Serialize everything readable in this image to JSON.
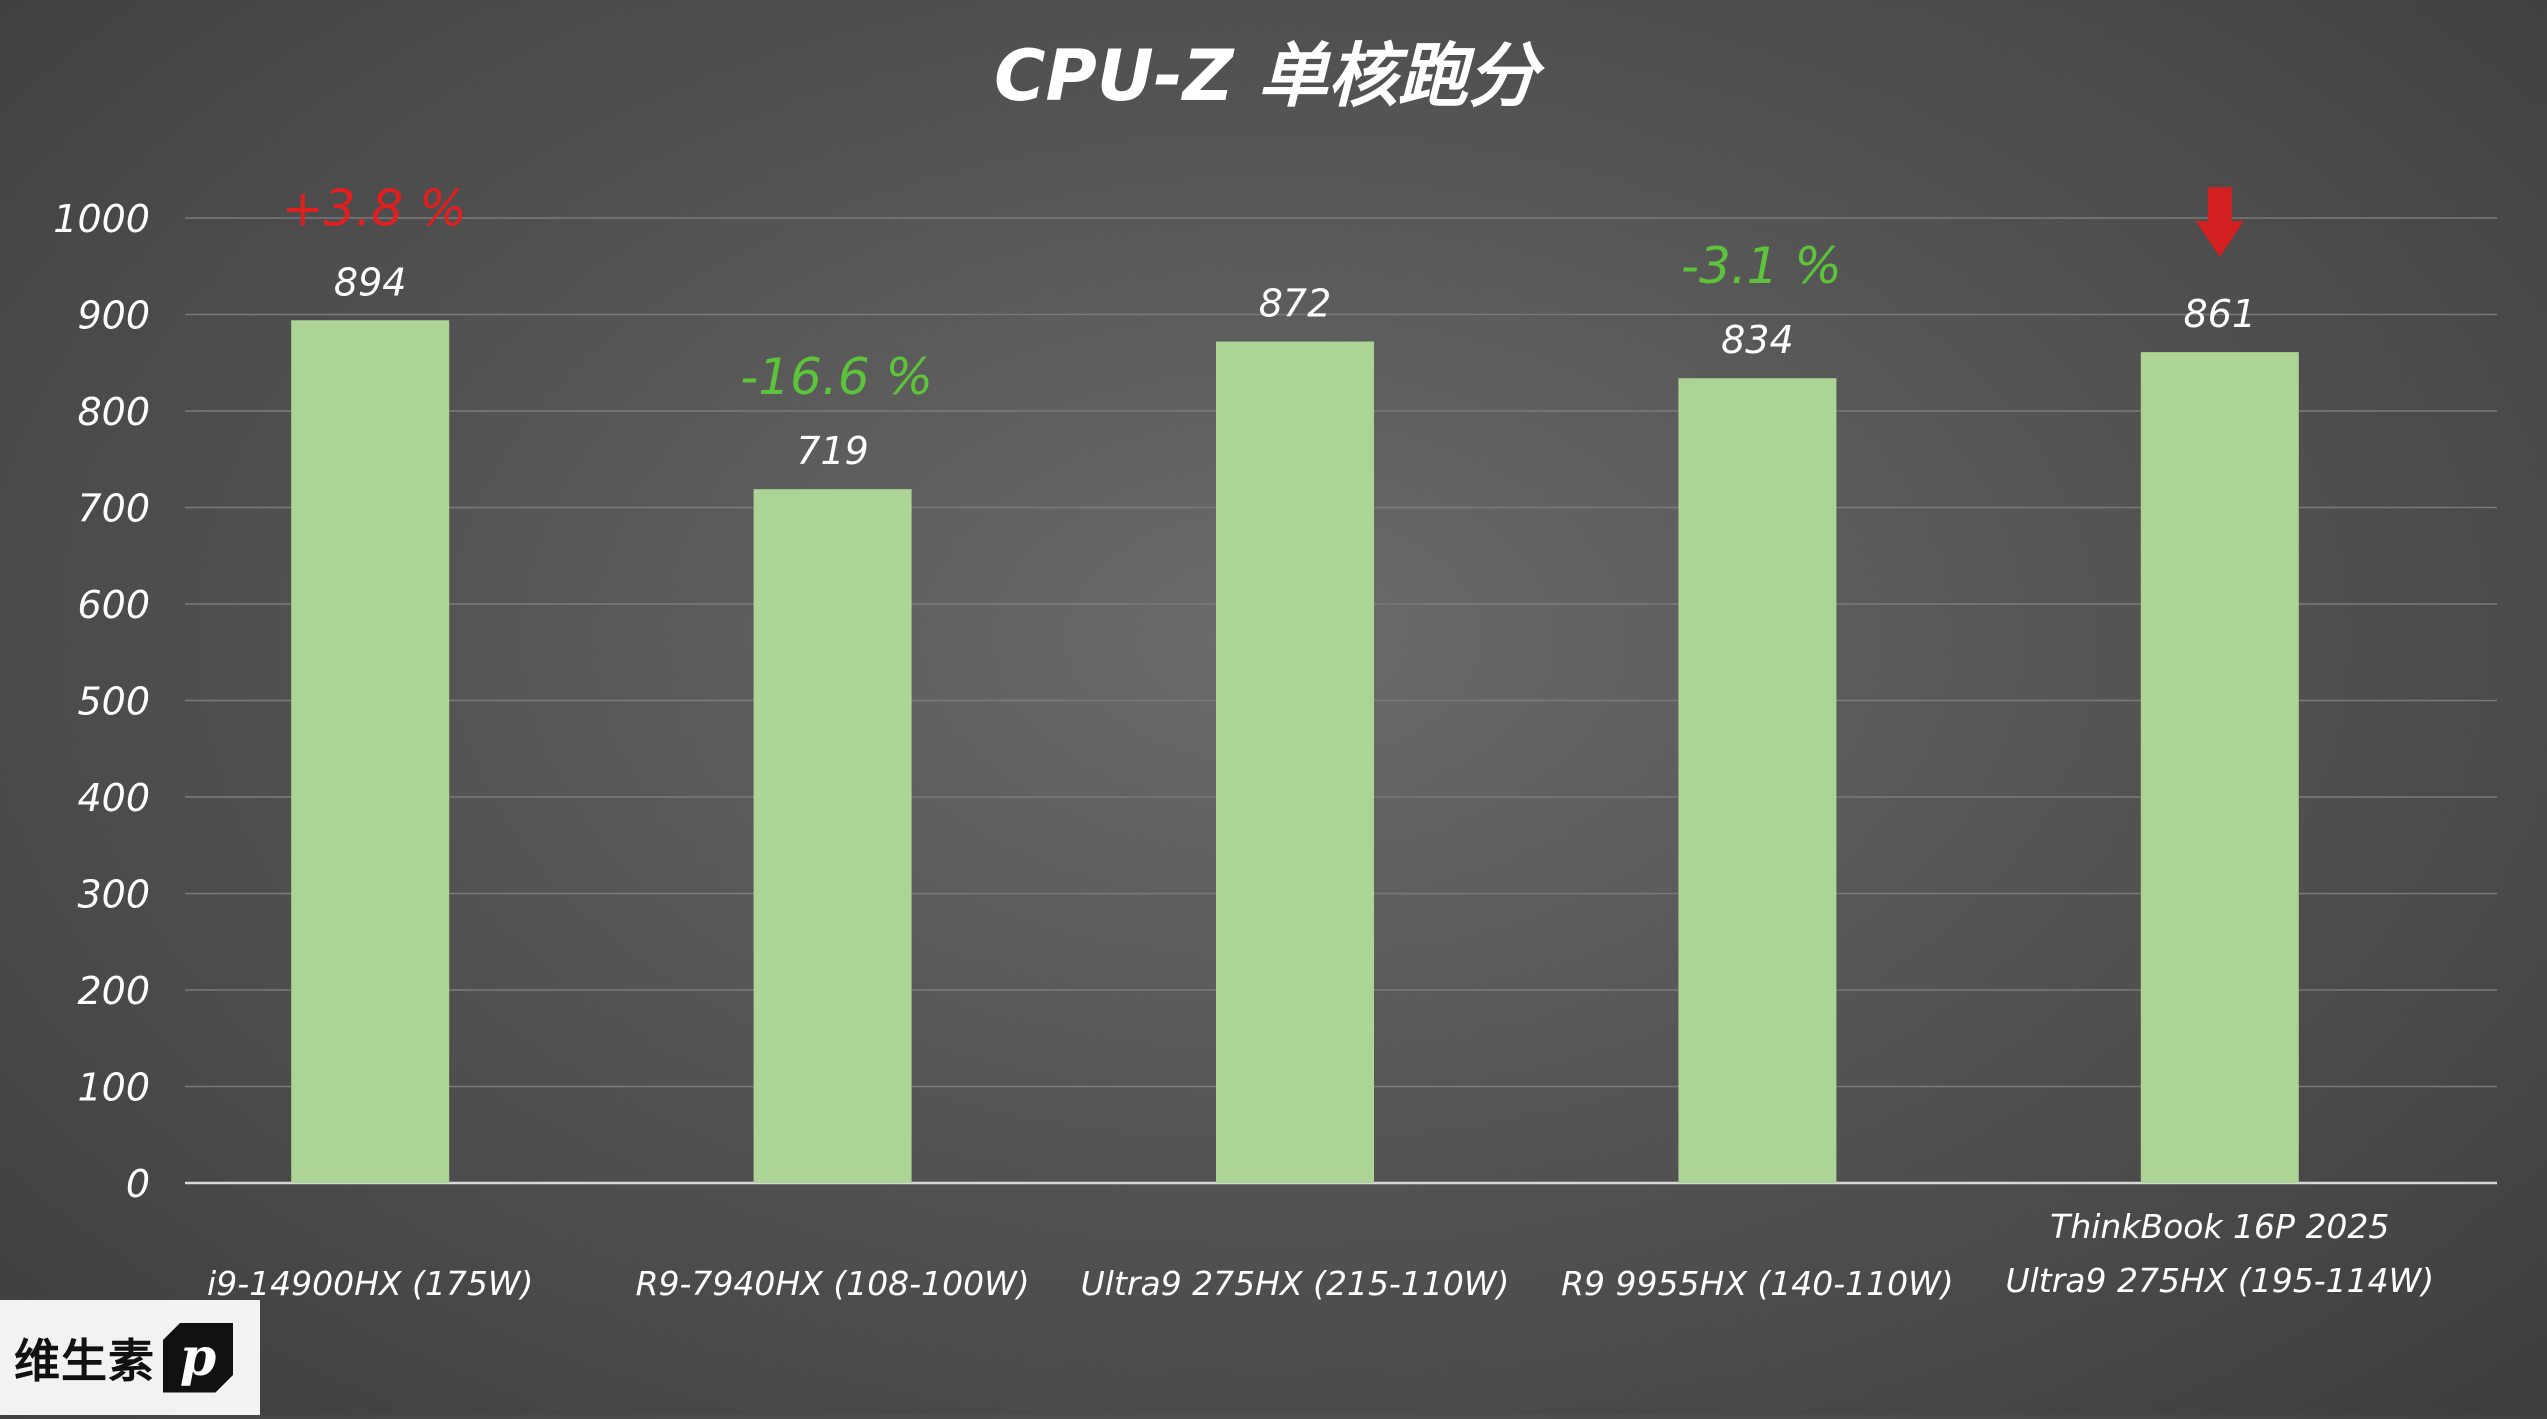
{
  "chart_data": {
    "type": "bar",
    "title": "CPU-Z 单核跑分",
    "categories": [
      [
        "i9-14900HX (175W)"
      ],
      [
        "R9-7940HX (108-100W)"
      ],
      [
        "Ultra9 275HX (215-110W)"
      ],
      [
        "R9 9955HX (140-110W)"
      ],
      [
        "ThinkBook 16P 2025",
        "Ultra9 275HX (195-114W)"
      ]
    ],
    "values": [
      894,
      719,
      872,
      834,
      861
    ],
    "ylim": [
      0,
      1000
    ],
    "yticks": [
      0,
      100,
      200,
      300,
      400,
      500,
      600,
      700,
      800,
      900,
      1000
    ],
    "grid": true,
    "bar_color": "#acd494",
    "annotations": [
      {
        "bar": 0,
        "text": "+3.8 %",
        "color": "#e02020"
      },
      {
        "bar": 1,
        "text": "-16.6 %",
        "color": "#5cc43a"
      },
      {
        "bar": 3,
        "text": "-3.1 %",
        "color": "#5cc43a"
      }
    ],
    "highlight_bar": 4,
    "highlight_arrow_color": "#d32020"
  },
  "logo": {
    "text": "维生素",
    "mark": "p"
  }
}
